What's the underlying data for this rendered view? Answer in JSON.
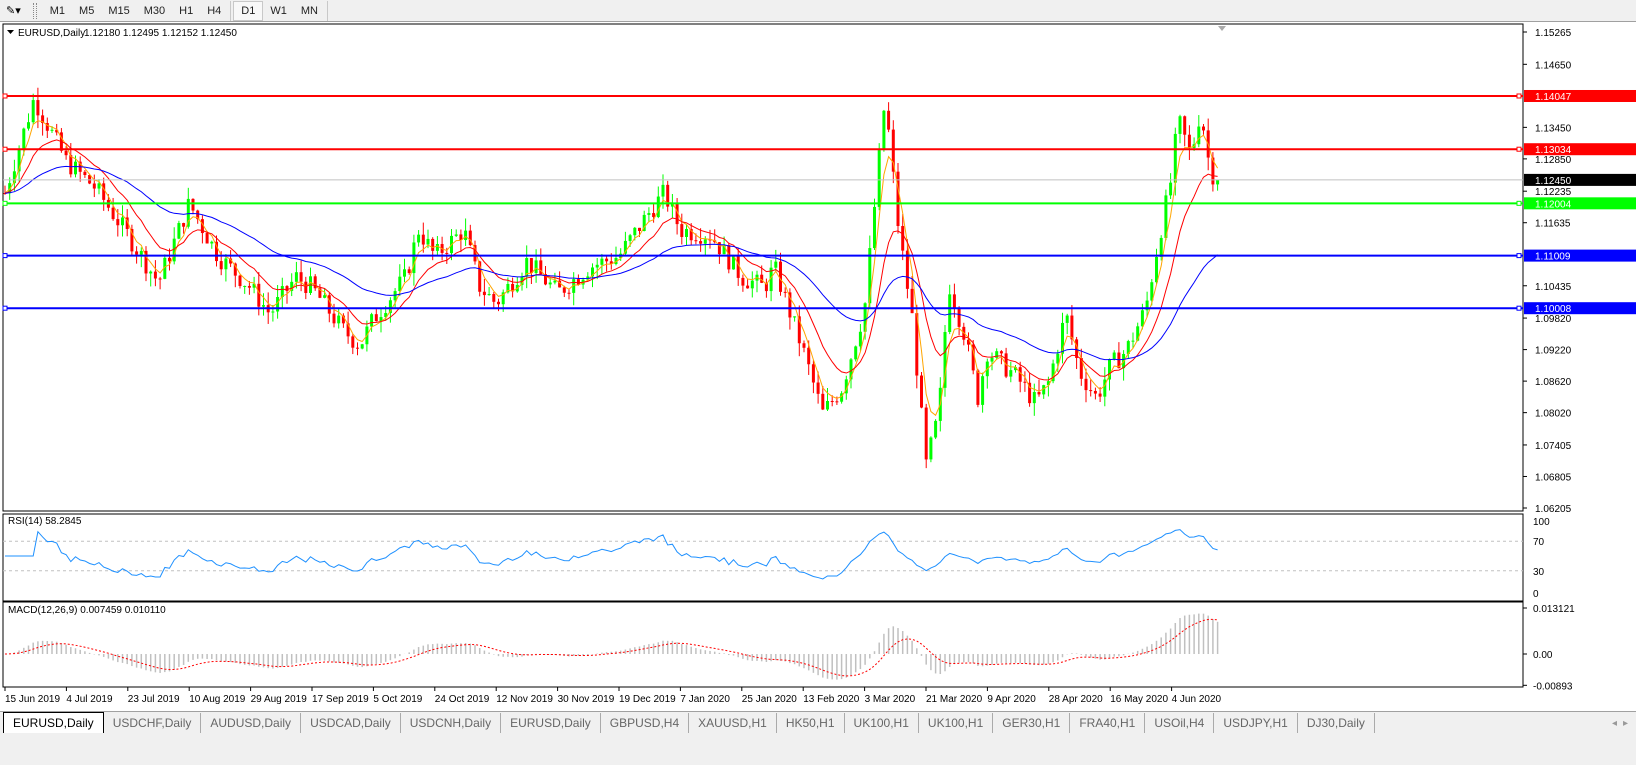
{
  "toolbar": {
    "tool_icon": "line-tools-icon",
    "timeframes": [
      "M1",
      "M5",
      "M15",
      "M30",
      "H1",
      "H4",
      "D1",
      "W1",
      "MN"
    ],
    "active_timeframe": "D1"
  },
  "chart_header": {
    "symbol": "EURUSD,Daily",
    "ohlc": "1.12180 1.12495 1.12152 1.12450"
  },
  "rsi_label": "RSI(14) 58.2845",
  "macd_label": "MACD(12,26,9) 0.007459 0.010110",
  "tabs": [
    {
      "label": "EURUSD,Daily",
      "active": true
    },
    {
      "label": "USDCHF,Daily"
    },
    {
      "label": "AUDUSD,Daily"
    },
    {
      "label": "USDCAD,Daily"
    },
    {
      "label": "USDCNH,Daily"
    },
    {
      "label": "EURUSD,Daily"
    },
    {
      "label": "GBPUSD,H4"
    },
    {
      "label": "XAUUSD,H1"
    },
    {
      "label": "HK50,H1"
    },
    {
      "label": "UK100,H1"
    },
    {
      "label": "UK100,H1"
    },
    {
      "label": "GER30,H1"
    },
    {
      "label": "FRA40,H1"
    },
    {
      "label": "USOil,H4"
    },
    {
      "label": "USDJPY,H1"
    },
    {
      "label": "DJ30,Daily"
    }
  ],
  "chart_data": {
    "type": "candlestick",
    "symbol": "EURUSD",
    "timeframe": "Daily",
    "colors": {
      "bull": "#00ff00",
      "bear": "#ff0000",
      "ma_fast": "#ffa500",
      "ma_mid": "#ff0000",
      "ma_slow": "#0000ff",
      "rsi": "#1e90ff",
      "macd_hist": "#c0c0c0",
      "macd_signal": "#ff0000"
    },
    "ylim": [
      1.06205,
      1.15265
    ],
    "price_ticks": [
      "1.15265",
      "1.14650",
      "1.13450",
      "1.12850",
      "1.12235",
      "1.11635",
      "1.10435",
      "1.09820",
      "1.09220",
      "1.08620",
      "1.08020",
      "1.07405",
      "1.06805",
      "1.06205"
    ],
    "x_ticks": [
      "15 Jun 2019",
      "4 Jul 2019",
      "23 Jul 2019",
      "10 Aug 2019",
      "29 Aug 2019",
      "17 Sep 2019",
      "5 Oct 2019",
      "24 Oct 2019",
      "12 Nov 2019",
      "30 Nov 2019",
      "19 Dec 2019",
      "7 Jan 2020",
      "25 Jan 2020",
      "13 Feb 2020",
      "3 Mar 2020",
      "21 Mar 2020",
      "9 Apr 2020",
      "28 Apr 2020",
      "16 May 2020",
      "4 Jun 2020"
    ],
    "horizontal_lines": [
      {
        "price": 1.14047,
        "label": "1.14047",
        "color": "#ff0000"
      },
      {
        "price": 1.13034,
        "label": "1.13034",
        "color": "#ff0000"
      },
      {
        "price": 1.12004,
        "label": "1.12004",
        "color": "#00ff00"
      },
      {
        "price": 1.11009,
        "label": "1.11009",
        "color": "#0000ff"
      },
      {
        "price": 1.10008,
        "label": "1.10008",
        "color": "#0000ff"
      }
    ],
    "current_price": {
      "price": 1.1245,
      "label": "1.12450"
    },
    "approx_close_path": [
      [
        "2019-06-15",
        1.122
      ],
      [
        "2019-06-24",
        1.14
      ],
      [
        "2019-07-04",
        1.128
      ],
      [
        "2019-07-13",
        1.123
      ],
      [
        "2019-07-23",
        1.114
      ],
      [
        "2019-08-01",
        1.105
      ],
      [
        "2019-08-10",
        1.12
      ],
      [
        "2019-08-19",
        1.11
      ],
      [
        "2019-08-29",
        1.104
      ],
      [
        "2019-09-04",
        1.099
      ],
      [
        "2019-09-12",
        1.106
      ],
      [
        "2019-09-17",
        1.104
      ],
      [
        "2019-09-26",
        1.096
      ],
      [
        "2019-10-01",
        1.093
      ],
      [
        "2019-10-05",
        1.098
      ],
      [
        "2019-10-15",
        1.106
      ],
      [
        "2019-10-19",
        1.115
      ],
      [
        "2019-10-24",
        1.11
      ],
      [
        "2019-11-02",
        1.115
      ],
      [
        "2019-11-07",
        1.104
      ],
      [
        "2019-11-12",
        1.101
      ],
      [
        "2019-11-21",
        1.109
      ],
      [
        "2019-11-30",
        1.103
      ],
      [
        "2019-12-10",
        1.108
      ],
      [
        "2019-12-19",
        1.11
      ],
      [
        "2019-12-28",
        1.118
      ],
      [
        "2020-01-02",
        1.122
      ],
      [
        "2020-01-07",
        1.115
      ],
      [
        "2020-01-16",
        1.114
      ],
      [
        "2020-01-25",
        1.106
      ],
      [
        "2020-02-01",
        1.104
      ],
      [
        "2020-02-04",
        1.108
      ],
      [
        "2020-02-13",
        1.092
      ],
      [
        "2020-02-19",
        1.08
      ],
      [
        "2020-02-25",
        1.085
      ],
      [
        "2020-03-03",
        1.1
      ],
      [
        "2020-03-06",
        1.12
      ],
      [
        "2020-03-09",
        1.14
      ],
      [
        "2020-03-13",
        1.115
      ],
      [
        "2020-03-17",
        1.098
      ],
      [
        "2020-03-21",
        1.07
      ],
      [
        "2020-03-25",
        1.08
      ],
      [
        "2020-03-28",
        1.105
      ],
      [
        "2020-04-02",
        1.095
      ],
      [
        "2020-04-06",
        1.083
      ],
      [
        "2020-04-09",
        1.092
      ],
      [
        "2020-04-18",
        1.087
      ],
      [
        "2020-04-24",
        1.082
      ],
      [
        "2020-04-28",
        1.086
      ],
      [
        "2020-05-03",
        1.099
      ],
      [
        "2020-05-07",
        1.088
      ],
      [
        "2020-05-12",
        1.083
      ],
      [
        "2020-05-16",
        1.089
      ],
      [
        "2020-05-21",
        1.092
      ],
      [
        "2020-05-27",
        1.1
      ],
      [
        "2020-05-31",
        1.113
      ],
      [
        "2020-06-04",
        1.125
      ],
      [
        "2020-06-06",
        1.136
      ],
      [
        "2020-06-10",
        1.129
      ],
      [
        "2020-06-13",
        1.138
      ],
      [
        "2020-06-16",
        1.126
      ],
      [
        "2020-06-19",
        1.1245
      ]
    ],
    "rsi": {
      "period": 14,
      "value": 58.2845,
      "levels": [
        70,
        30
      ],
      "ylim": [
        0,
        100
      ],
      "ticks": [
        "100",
        "70",
        "30",
        "0"
      ]
    },
    "macd": {
      "fast": 12,
      "slow": 26,
      "signal": 9,
      "main": 0.007459,
      "signal_value": 0.01011,
      "ticks": [
        "0.013121",
        "0.00",
        "-0.00893"
      ]
    }
  }
}
